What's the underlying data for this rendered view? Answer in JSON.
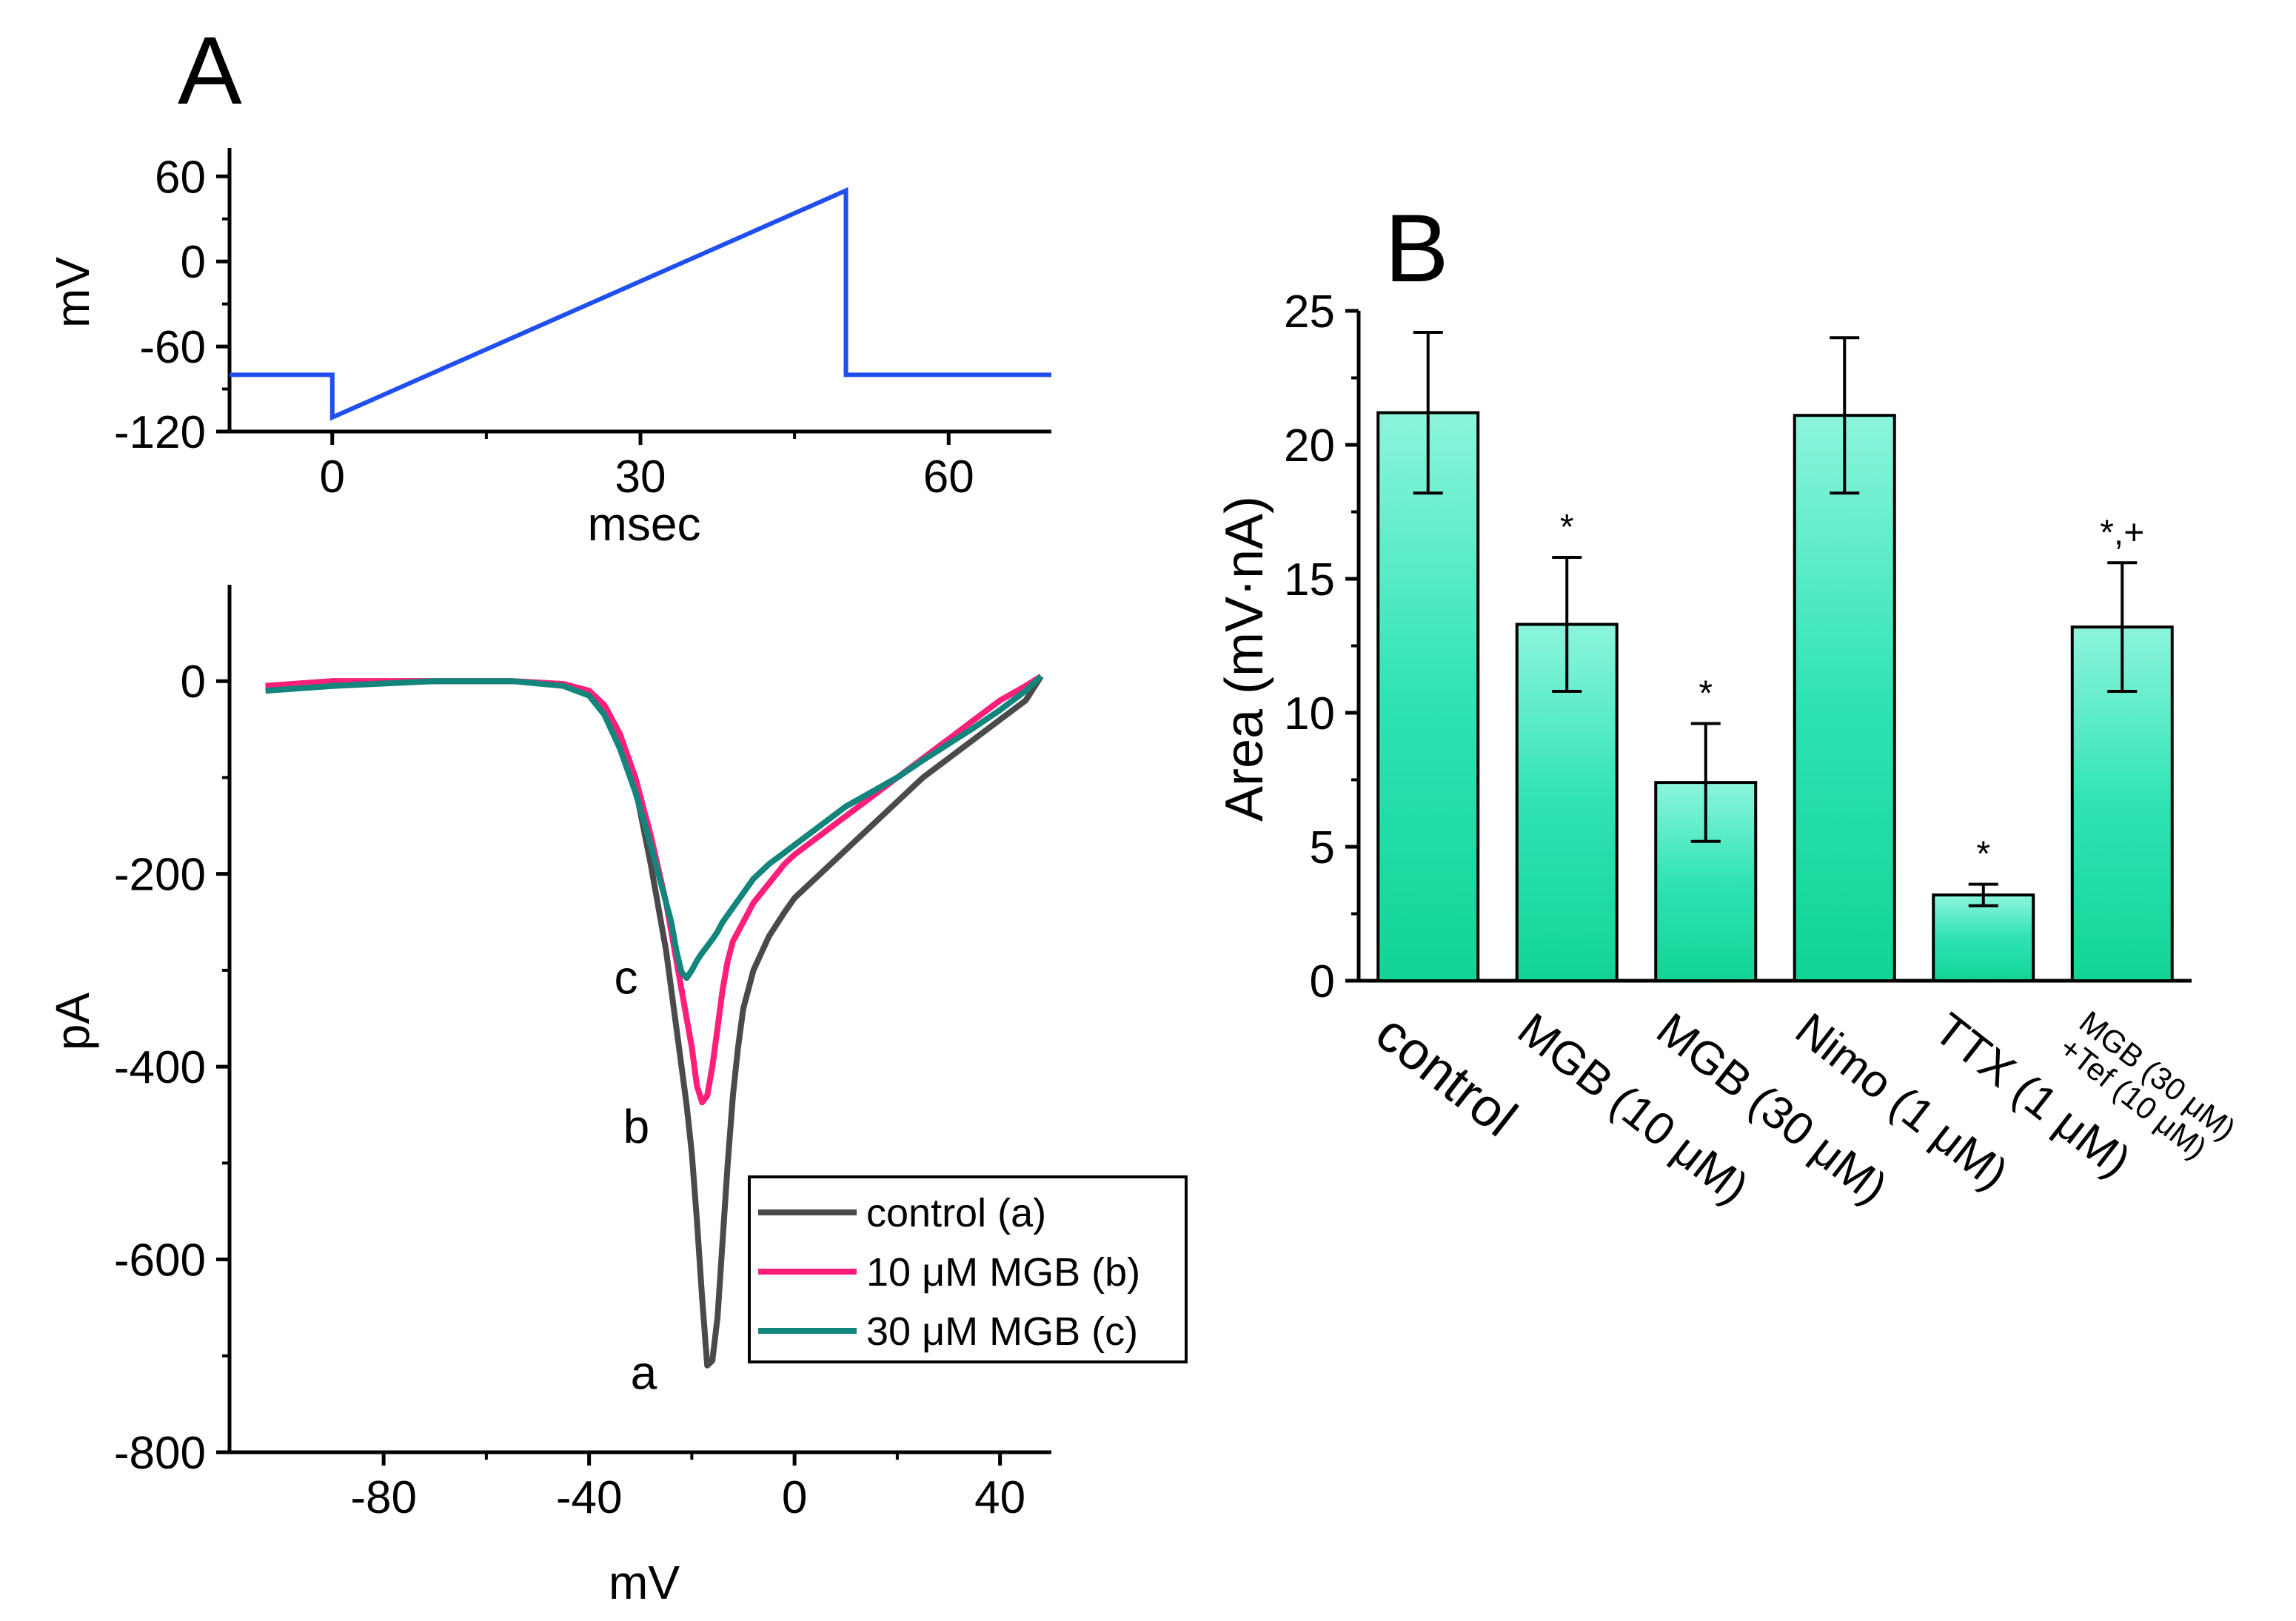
{
  "panels": {
    "a_label": "A",
    "b_label": "B"
  },
  "colors": {
    "ramp": "#1f4ff0",
    "control": "#4a4a4a",
    "mgb10": "#ff1f7a",
    "mgb30": "#13857c",
    "bar_top": "#8cf5dc",
    "bar_bottom": "#12d495"
  },
  "chart_data": [
    {
      "id": "voltage_protocol",
      "type": "line",
      "xlabel": "msec",
      "ylabel": "mV",
      "xlim": [
        -10,
        70
      ],
      "ylim": [
        -120,
        80
      ],
      "xticks": [
        0,
        30,
        60
      ],
      "yticks": [
        -120,
        -60,
        0,
        60
      ],
      "series": [
        {
          "name": "ramp",
          "x": [
            -10,
            0,
            0,
            50,
            50,
            70
          ],
          "y": [
            -80,
            -80,
            -110,
            50,
            -80,
            -80
          ]
        }
      ]
    },
    {
      "id": "iv_curves",
      "type": "line",
      "xlabel": "mV",
      "ylabel": "pA",
      "xlim": [
        -110,
        50
      ],
      "ylim": [
        -800,
        100
      ],
      "xticks": [
        -80,
        -40,
        0,
        40
      ],
      "yticks": [
        -800,
        -600,
        -400,
        -200,
        0
      ],
      "series": [
        {
          "name": "control (a)",
          "x": [
            -103,
            -90,
            -70,
            -55,
            -45,
            -40,
            -37,
            -34,
            -31,
            -28,
            -25,
            -23,
            -21,
            -20,
            -19,
            -18,
            -17,
            -16,
            -15,
            -14,
            -13,
            -12,
            -11,
            -10,
            -8,
            -5,
            -2,
            0,
            5,
            10,
            15,
            20,
            25,
            30,
            35,
            40,
            45,
            48
          ],
          "y": [
            -5,
            0,
            0,
            0,
            -3,
            -10,
            -25,
            -55,
            -110,
            -190,
            -280,
            -360,
            -440,
            -490,
            -560,
            -640,
            -710,
            -705,
            -660,
            -580,
            -500,
            -430,
            -380,
            -340,
            -300,
            -265,
            -240,
            -225,
            -200,
            -175,
            -150,
            -125,
            -100,
            -80,
            -60,
            -40,
            -20,
            5
          ]
        },
        {
          "name": "10 μM MGB (b)",
          "x": [
            -103,
            -90,
            -70,
            -55,
            -45,
            -40,
            -37,
            -34,
            -31,
            -28,
            -25,
            -23,
            -22,
            -21,
            -20,
            -19,
            -18,
            -17,
            -16,
            -15,
            -14,
            -13,
            -12,
            -10,
            -8,
            -5,
            -2,
            0,
            5,
            10,
            15,
            20,
            25,
            30,
            35,
            40,
            45,
            48
          ],
          "y": [
            -5,
            0,
            0,
            0,
            -3,
            -10,
            -25,
            -55,
            -100,
            -160,
            -230,
            -290,
            -320,
            -350,
            -380,
            -420,
            -437,
            -430,
            -400,
            -360,
            -320,
            -290,
            -270,
            -250,
            -230,
            -210,
            -190,
            -180,
            -160,
            -140,
            -120,
            -100,
            -80,
            -60,
            -40,
            -20,
            -5,
            5
          ]
        },
        {
          "name": "30 μM MGB (c)",
          "x": [
            -103,
            -90,
            -70,
            -55,
            -45,
            -40,
            -37,
            -34,
            -31,
            -28,
            -26,
            -24,
            -23,
            -22,
            -21,
            -20,
            -19,
            -18,
            -17,
            -16,
            -15,
            -14,
            -12,
            -10,
            -8,
            -5,
            -2,
            0,
            5,
            10,
            15,
            20,
            25,
            30,
            35,
            40,
            45,
            48
          ],
          "y": [
            -10,
            -5,
            0,
            0,
            -5,
            -15,
            -35,
            -70,
            -115,
            -170,
            -210,
            -250,
            -280,
            -302,
            -308,
            -300,
            -290,
            -282,
            -275,
            -268,
            -260,
            -250,
            -235,
            -220,
            -205,
            -190,
            -178,
            -170,
            -150,
            -130,
            -115,
            -100,
            -82,
            -65,
            -48,
            -30,
            -10,
            5
          ]
        }
      ],
      "legend": {
        "position": "bottom-right",
        "entries": [
          "control (a)",
          "10 μM MGB (b)",
          "30 μM MGB (c)"
        ]
      },
      "annotations": [
        {
          "text": "a",
          "x": -20,
          "y": -715
        },
        {
          "text": "b",
          "x": -20,
          "y": -460
        },
        {
          "text": "c",
          "x": -22,
          "y": -305
        }
      ]
    },
    {
      "id": "area_bars",
      "type": "bar",
      "ylabel": "Area (mV·nA)",
      "ylim": [
        0,
        25
      ],
      "yticks": [
        0,
        5,
        10,
        15,
        20,
        25
      ],
      "categories": [
        "control",
        "MGB (10 μM)",
        "MGB (30 μM)",
        "Nimo (1 μM)",
        "TTX (1 μM)",
        "MGB (30 μM)\n+Tef (10 μM)"
      ],
      "category_lines": [
        [
          "control"
        ],
        [
          "MGB (10 μM)"
        ],
        [
          "MGB (30 μM)"
        ],
        [
          "Nimo (1 μM)"
        ],
        [
          "TTX (1 μM)"
        ],
        [
          "MGB (30 μM)",
          "+Tef (10 μM)"
        ]
      ],
      "values": [
        21.2,
        13.3,
        7.4,
        21.1,
        3.2,
        13.2
      ],
      "errors": [
        3.0,
        2.5,
        2.2,
        2.9,
        0.4,
        2.4
      ],
      "significance": [
        "",
        "*",
        "*",
        "",
        "*",
        "*,+"
      ]
    }
  ]
}
